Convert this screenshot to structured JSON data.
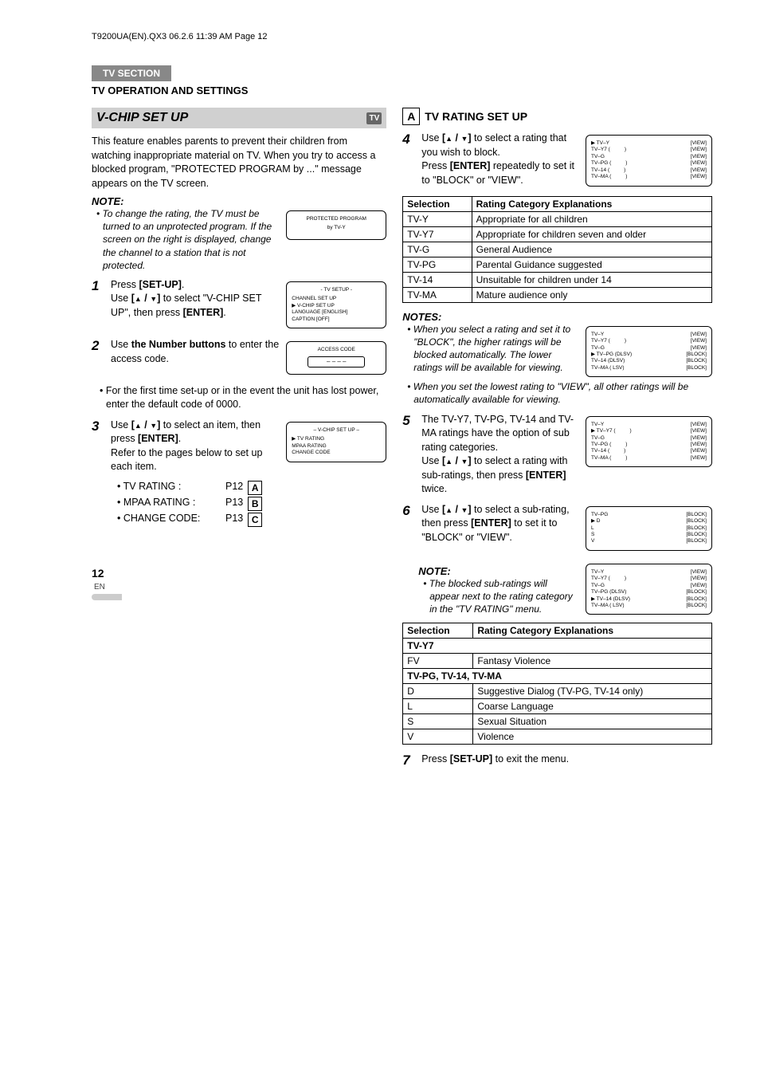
{
  "header": "T9200UA(EN).QX3  06.2.6  11:39 AM  Page 12",
  "badge": "TV SECTION",
  "section_title": "TV OPERATION AND SETTINGS",
  "main_heading": "V-CHIP SET UP",
  "tv_badge": "TV",
  "intro": "This feature enables parents to prevent their children from watching inappropriate material on TV. When you try to access a blocked program, \"PROTECTED PROGRAM by ...\" message appears on the TV screen.",
  "note_label": "NOTE:",
  "notes_label": "NOTES:",
  "note1": "• To change the rating, the TV must be turned to an unprotected program. If the screen on the right is displayed, change the channel to a station that is not protected.",
  "box_protected": {
    "l1": "PROTECTED PROGRAM",
    "l2": "by TV-Y"
  },
  "step1": "Press [SET-UP].\nUse [▲ / ▼] to select \"V-CHIP SET UP\", then press [ENTER].",
  "setup_menu": {
    "title": "- TV SETUP -",
    "rows": [
      "CHANNEL SET UP",
      "▶ V-CHIP SET UP",
      "LANGUAGE  [ENGLISH]",
      "CAPTION   [OFF]"
    ]
  },
  "step2": "Use the Number buttons to enter the access code.",
  "access_box": {
    "title": "ACCESS CODE",
    "code": "– – – –"
  },
  "step2_bullet": "• For the first time set-up or in the event the unit has lost power, enter the default code of 0000.",
  "step3": "Use [▲ / ▼] to select an item, then press [ENTER].\nRefer to the pages below to set up each item.",
  "vchip_menu": {
    "title": "– V-CHIP SET UP –",
    "rows": [
      "▶ TV RATING",
      "  MPAA RATING",
      "  CHANGE CODE"
    ]
  },
  "step3_sub": [
    {
      "label": "• TV RATING :",
      "page": "P12",
      "box": "A"
    },
    {
      "label": "• MPAA RATING :",
      "page": "P13",
      "box": "B"
    },
    {
      "label": "• CHANGE CODE:",
      "page": "P13",
      "box": "C"
    }
  ],
  "right_box": "A",
  "right_title": "TV RATING SET UP",
  "step4": "Use [▲ / ▼] to select a rating that you wish to block.\nPress [ENTER] repeatedly to set it to \"BLOCK\" or \"VIEW\".",
  "ratings_menu1": [
    {
      "l": "▶ TV–Y",
      "m": "",
      "r": "[VIEW]"
    },
    {
      "l": "  TV–Y7 (",
      "m": ")",
      "r": "[VIEW]"
    },
    {
      "l": "  TV–G",
      "m": "",
      "r": "[VIEW]"
    },
    {
      "l": "  TV–PG (",
      "m": ")",
      "r": "[VIEW]"
    },
    {
      "l": "  TV–14 (",
      "m": ")",
      "r": "[VIEW]"
    },
    {
      "l": "  TV–MA (",
      "m": ")",
      "r": "[VIEW]"
    }
  ],
  "table1": {
    "headers": [
      "Selection",
      "Rating Category Explanations"
    ],
    "rows": [
      [
        "TV-Y",
        "Appropriate for all children"
      ],
      [
        "TV-Y7",
        "Appropriate for children seven and older"
      ],
      [
        "TV-G",
        "General Audience"
      ],
      [
        "TV-PG",
        "Parental Guidance suggested"
      ],
      [
        "TV-14",
        "Unsuitable for children under 14"
      ],
      [
        "TV-MA",
        "Mature audience only"
      ]
    ]
  },
  "notes_r1": "• When you select a rating and set it to \"BLOCK\", the higher ratings will be blocked automatically. The lower ratings will be available for viewing.",
  "notes_r2": "• When you set the lowest rating to \"VIEW\", all other ratings will be automatically available for viewing.",
  "ratings_menu_block": [
    {
      "l": "  TV–Y",
      "m": "",
      "r": "[VIEW]"
    },
    {
      "l": "  TV–Y7 (",
      "m": ")",
      "r": "[VIEW]"
    },
    {
      "l": "  TV–G",
      "m": "",
      "r": "[VIEW]"
    },
    {
      "l": "▶ TV–PG (DLSV)",
      "m": "",
      "r": "[BLOCK]"
    },
    {
      "l": "  TV–14 (DLSV)",
      "m": "",
      "r": "[BLOCK]"
    },
    {
      "l": "  TV–MA ( LSV)",
      "m": "",
      "r": "[BLOCK]"
    }
  ],
  "step5": "The TV-Y7, TV-PG, TV-14 and TV-MA ratings have the option of sub rating categories.\nUse [▲ / ▼] to select a rating with sub-ratings, then press [ENTER] twice.",
  "ratings_menu5": [
    {
      "l": "  TV–Y",
      "m": "",
      "r": "[VIEW]"
    },
    {
      "l": "▶ TV–Y7 (",
      "m": ")",
      "r": "[VIEW]"
    },
    {
      "l": "  TV–G",
      "m": "",
      "r": "[VIEW]"
    },
    {
      "l": "  TV–PG (",
      "m": ")",
      "r": "[VIEW]"
    },
    {
      "l": "  TV–14 (",
      "m": ")",
      "r": "[VIEW]"
    },
    {
      "l": "  TV–MA (",
      "m": ")",
      "r": "[VIEW]"
    }
  ],
  "step6": "Use [▲ / ▼] to select a sub-rating, then press [ENTER] to set it to \"BLOCK\" or \"VIEW\".",
  "sub_menu": [
    {
      "l": "  TV–PG",
      "r": "[BLOCK]"
    },
    {
      "l": "",
      "r": ""
    },
    {
      "l": "▶ D",
      "r": "[BLOCK]"
    },
    {
      "l": "  L",
      "r": "[BLOCK]"
    },
    {
      "l": "  S",
      "r": "[BLOCK]"
    },
    {
      "l": "  V",
      "r": "[BLOCK]"
    }
  ],
  "note6": "• The blocked sub-ratings will appear next to the rating category in the \"TV RATING\" menu.",
  "ratings_menu_final": [
    {
      "l": "  TV–Y",
      "m": "",
      "r": "[VIEW]"
    },
    {
      "l": "  TV–Y7 (",
      "m": ")",
      "r": "[VIEW]"
    },
    {
      "l": "  TV–G",
      "m": "",
      "r": "[VIEW]"
    },
    {
      "l": "  TV–PG (DLSV)",
      "m": "",
      "r": "[BLOCK]"
    },
    {
      "l": "▶ TV–14  (DLSV)",
      "m": "",
      "r": "[BLOCK]"
    },
    {
      "l": "  TV–MA (  LSV)",
      "m": "",
      "r": "[BLOCK]"
    }
  ],
  "table2": {
    "headers": [
      "Selection",
      "Rating Category Explanations"
    ],
    "group1": "TV-Y7",
    "rows1": [
      [
        "FV",
        "Fantasy Violence"
      ]
    ],
    "group2": "TV-PG, TV-14, TV-MA",
    "rows2": [
      [
        "D",
        "Suggestive Dialog (TV-PG, TV-14 only)"
      ],
      [
        "L",
        "Coarse Language"
      ],
      [
        "S",
        "Sexual Situation"
      ],
      [
        "V",
        "Violence"
      ]
    ]
  },
  "step7": "Press [SET-UP] to exit the menu.",
  "page_num": "12",
  "page_lang": "EN"
}
